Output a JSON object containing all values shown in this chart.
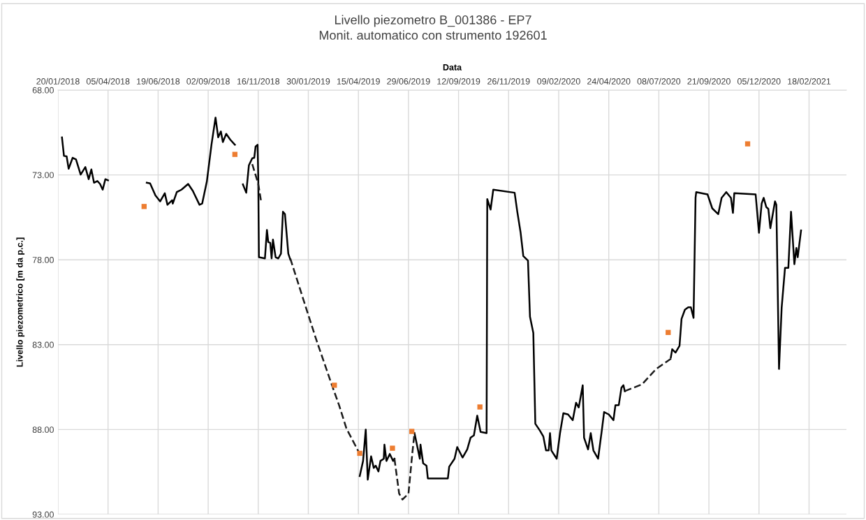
{
  "chart_data": {
    "type": "line",
    "title": "Livello piezometro B_001386 - EP7",
    "subtitle": "Monit. automatico con strumento 192601",
    "xlabel": "Data",
    "ylabel": "Livello piezometrico [m da p.c.]",
    "xlim": [
      "2018-01-20",
      "2021-04-15"
    ],
    "xticks": [
      {
        "value": "2018-01-20",
        "label": "20/01/2018"
      },
      {
        "value": "2018-04-05",
        "label": "05/04/2018"
      },
      {
        "value": "2018-06-19",
        "label": "19/06/2018"
      },
      {
        "value": "2018-09-02",
        "label": "02/09/2018"
      },
      {
        "value": "2018-11-16",
        "label": "16/11/2018"
      },
      {
        "value": "2019-01-30",
        "label": "30/01/2019"
      },
      {
        "value": "2019-04-15",
        "label": "15/04/2019"
      },
      {
        "value": "2019-06-29",
        "label": "29/06/2019"
      },
      {
        "value": "2019-09-12",
        "label": "12/09/2019"
      },
      {
        "value": "2019-11-26",
        "label": "26/11/2019"
      },
      {
        "value": "2020-02-09",
        "label": "09/02/2020"
      },
      {
        "value": "2020-04-24",
        "label": "24/04/2020"
      },
      {
        "value": "2020-07-08",
        "label": "08/07/2020"
      },
      {
        "value": "2020-09-21",
        "label": "21/09/2020"
      },
      {
        "value": "2020-12-05",
        "label": "05/12/2020"
      },
      {
        "value": "2021-02-18",
        "label": "18/02/2021"
      }
    ],
    "ylim": [
      93,
      68
    ],
    "yticks": [
      {
        "value": 68,
        "label": "68.00"
      },
      {
        "value": 73,
        "label": "73.00"
      },
      {
        "value": 78,
        "label": "78.00"
      },
      {
        "value": 83,
        "label": "83.00"
      },
      {
        "value": 88,
        "label": "88.00"
      },
      {
        "value": 93,
        "label": "93.00"
      }
    ],
    "grid": true,
    "series": [
      {
        "color": "#000000",
        "line_style": "solid",
        "marker": "none",
        "x": [
          "2018-01-26",
          "2018-01-29",
          "2018-02-02",
          "2018-02-05",
          "2018-02-11",
          "2018-02-16",
          "2018-02-23",
          "2018-03-02",
          "2018-03-07",
          "2018-03-11",
          "2018-03-15",
          "2018-03-20",
          "2018-03-24",
          "2018-03-28",
          "2018-04-01",
          "2018-04-05",
          "2018-05-01",
          "2018-06-02",
          "2018-06-07",
          "2018-06-15",
          "2018-06-22",
          "2018-06-29",
          "2018-07-03",
          "2018-07-10",
          "2018-07-11",
          "2018-07-17",
          "2018-07-24",
          "2018-08-03",
          "2018-08-10",
          "2018-08-20",
          "2018-08-24",
          "2018-08-31",
          "2018-09-07",
          "2018-09-13",
          "2018-09-17",
          "2018-09-21",
          "2018-09-24",
          "2018-09-29",
          "2018-10-05",
          "2018-10-12",
          "2018-10-18",
          "2018-10-24",
          "2018-10-29",
          "2018-11-02",
          "2018-11-07",
          "2018-11-10",
          "2018-11-12",
          "2018-11-15",
          "2018-11-16",
          "2018-11-17",
          "2018-11-26",
          "2018-11-29",
          "2018-12-01",
          "2018-12-04",
          "2018-12-06",
          "2018-12-08",
          "2018-12-12",
          "2018-12-16",
          "2018-12-20",
          "2018-12-23",
          "2018-12-26",
          "2018-12-31",
          "2019-01-03",
          "2019-02-01",
          "2019-04-17",
          "2019-04-22",
          "2019-04-26",
          "2019-04-29",
          "2019-05-04",
          "2019-05-08",
          "2019-05-11",
          "2019-05-15",
          "2019-05-18",
          "2019-05-23",
          "2019-05-24",
          "2019-05-27",
          "2019-06-01",
          "2019-06-06",
          "2019-06-08",
          "2019-06-20",
          "2019-07-08",
          "2019-07-12",
          "2019-07-16",
          "2019-07-17",
          "2019-07-21",
          "2019-07-26",
          "2019-07-28",
          "2019-08-27",
          "2019-08-29",
          "2019-09-06",
          "2019-09-10",
          "2019-09-18",
          "2019-09-25",
          "2019-09-30",
          "2019-10-05",
          "2019-10-10",
          "2019-10-15",
          "2019-10-24",
          "2019-10-25",
          "2019-10-30",
          "2019-11-03",
          "2019-12-05",
          "2019-12-09",
          "2019-12-14",
          "2019-12-18",
          "2019-12-25",
          "2019-12-28",
          "2020-01-02",
          "2020-01-05",
          "2020-01-12",
          "2020-01-17",
          "2020-01-21",
          "2020-01-25",
          "2020-01-27",
          "2020-01-29",
          "2020-02-06",
          "2020-02-11",
          "2020-02-16",
          "2020-02-23",
          "2020-03-01",
          "2020-03-06",
          "2020-03-10",
          "2020-03-16",
          "2020-03-18",
          "2020-03-24",
          "2020-03-28",
          "2020-04-01",
          "2020-04-08",
          "2020-04-14",
          "2020-04-17",
          "2020-04-24",
          "2020-05-01",
          "2020-05-04",
          "2020-05-09",
          "2020-05-13",
          "2020-05-16",
          "2020-05-18",
          "2020-06-20",
          "2020-07-26",
          "2020-07-28",
          "2020-08-02",
          "2020-08-08",
          "2020-08-11",
          "2020-08-16",
          "2020-08-21",
          "2020-08-25",
          "2020-08-29",
          "2020-09-01",
          "2020-09-02",
          "2020-09-19",
          "2020-09-26",
          "2020-10-05",
          "2020-10-10",
          "2020-10-17",
          "2020-10-24",
          "2020-10-27",
          "2020-10-29",
          "2020-11-30",
          "2020-12-05",
          "2020-12-09",
          "2020-12-12",
          "2020-12-16",
          "2020-12-19",
          "2020-12-22",
          "2020-12-29",
          "2020-12-31",
          "2021-01-04",
          "2021-01-08",
          "2021-01-13",
          "2021-01-18",
          "2021-01-22",
          "2021-01-27",
          "2021-01-30",
          "2021-02-01",
          "2021-02-06"
        ],
        "values": [
          70.79,
          71.88,
          71.91,
          72.64,
          71.99,
          72.09,
          72.98,
          72.54,
          73.25,
          72.68,
          73.46,
          73.36,
          73.53,
          73.87,
          73.25,
          73.32,
          null,
          73.46,
          73.5,
          74.21,
          74.56,
          74.08,
          74.76,
          74.49,
          74.69,
          74.01,
          73.87,
          73.53,
          73.94,
          74.76,
          74.69,
          73.39,
          71.2,
          69.62,
          70.79,
          70.44,
          71.06,
          70.58,
          70.92,
          71.22,
          null,
          73.56,
          74.05,
          72.43,
          72.02,
          71.99,
          71.33,
          71.22,
          73.12,
          77.85,
          77.92,
          76.24,
          76.96,
          77.0,
          77.92,
          76.81,
          77.85,
          77.92,
          77.64,
          75.17,
          75.31,
          77.64,
          77.99,
          null,
          90.74,
          89.85,
          88.0,
          90.95,
          89.58,
          90.26,
          90.13,
          90.47,
          89.85,
          89.72,
          88.89,
          89.85,
          89.44,
          89.85,
          89.72,
          null,
          88.21,
          88.96,
          89.72,
          88.89,
          89.99,
          90.13,
          90.88,
          90.88,
          90.19,
          89.72,
          89.03,
          89.65,
          89.17,
          88.48,
          88.34,
          87.18,
          88.14,
          88.21,
          74.42,
          75.04,
          73.87,
          74.05,
          75.17,
          76.41,
          77.78,
          78.05,
          81.35,
          82.31,
          87.66,
          88.07,
          88.41,
          89.23,
          89.23,
          88.21,
          89.23,
          89.72,
          88.21,
          87.04,
          87.11,
          87.45,
          86.42,
          86.7,
          85.39,
          88.48,
          89.17,
          88.21,
          89.23,
          89.72,
          87.93,
          86.97,
          87.11,
          87.45,
          86.56,
          86.56,
          85.53,
          85.39,
          85.74,
          null,
          83.75,
          83.27,
          83.47,
          83.06,
          81.48,
          80.94,
          80.8,
          80.8,
          81.42,
          74.35,
          74.01,
          74.15,
          74.97,
          75.31,
          74.35,
          74.01,
          74.35,
          75.24,
          74.08,
          74.15,
          76.41,
          74.69,
          74.35,
          74.9,
          75.0,
          76.14,
          74.56,
          74.76,
          84.43,
          80.8,
          78.47,
          78.47,
          75.17,
          78.26,
          77.3,
          77.85,
          76.27
        ]
      },
      {
        "color": "#1a1a1a",
        "line_style": "dashed",
        "marker": "none",
        "x": [
          "2018-11-07",
          "2018-11-16",
          "2018-11-20",
          "2018-12-10",
          "2019-01-03",
          "2019-01-24",
          "2019-02-11",
          "2019-03-07",
          "2019-03-17",
          "2019-03-28",
          "2019-04-17",
          "2019-05-15",
          "2019-06-08",
          "2019-06-15",
          "2019-06-20",
          "2019-06-29",
          "2019-07-05",
          "2019-07-08",
          "2020-01-01",
          "2020-05-18",
          "2020-06-13",
          "2020-07-04",
          "2020-07-29"
        ],
        "values": [
          72.36,
          73.53,
          74.49,
          null,
          77.92,
          80.52,
          82.72,
          85.46,
          86.56,
          87.93,
          89.44,
          null,
          89.72,
          91.77,
          92.12,
          91.77,
          89.3,
          88.21,
          null,
          85.74,
          85.33,
          84.43,
          83.75
        ]
      },
      {
        "type": "scatter",
        "color": "#ed7d31",
        "marker": "square",
        "x": [
          "2018-05-29",
          "2018-10-12",
          "2019-03-10",
          "2019-04-17",
          "2019-06-05",
          "2019-07-04",
          "2019-10-14",
          "2020-07-22",
          "2020-11-18"
        ],
        "values": [
          74.86,
          71.79,
          85.39,
          89.4,
          89.1,
          88.11,
          86.67,
          82.28,
          71.17
        ]
      }
    ]
  }
}
